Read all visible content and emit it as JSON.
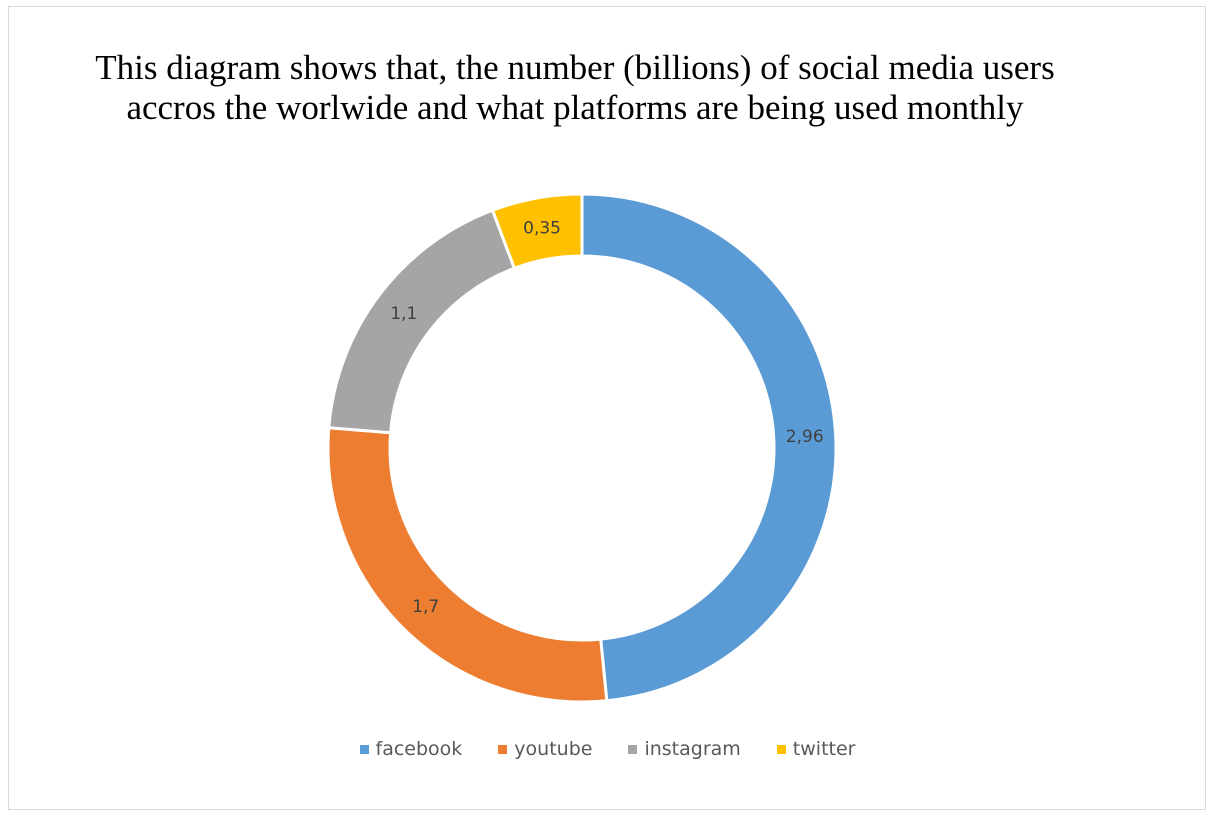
{
  "chart_data": {
    "type": "pie",
    "variant": "donut",
    "title": "This diagram shows that, the number (billions) of social media users accros the worlwide and what platforms are being used monthly",
    "categories": [
      "facebook",
      "youtube",
      "instagram",
      "twitter"
    ],
    "values": [
      2.96,
      1.7,
      1.1,
      0.35
    ],
    "data_labels": [
      "2,96",
      "1,7",
      "1,1",
      "0,35"
    ],
    "colors": [
      "#5b9bd5",
      "#ed7d31",
      "#a5a5a5",
      "#ffc000"
    ],
    "legend_position": "bottom"
  }
}
